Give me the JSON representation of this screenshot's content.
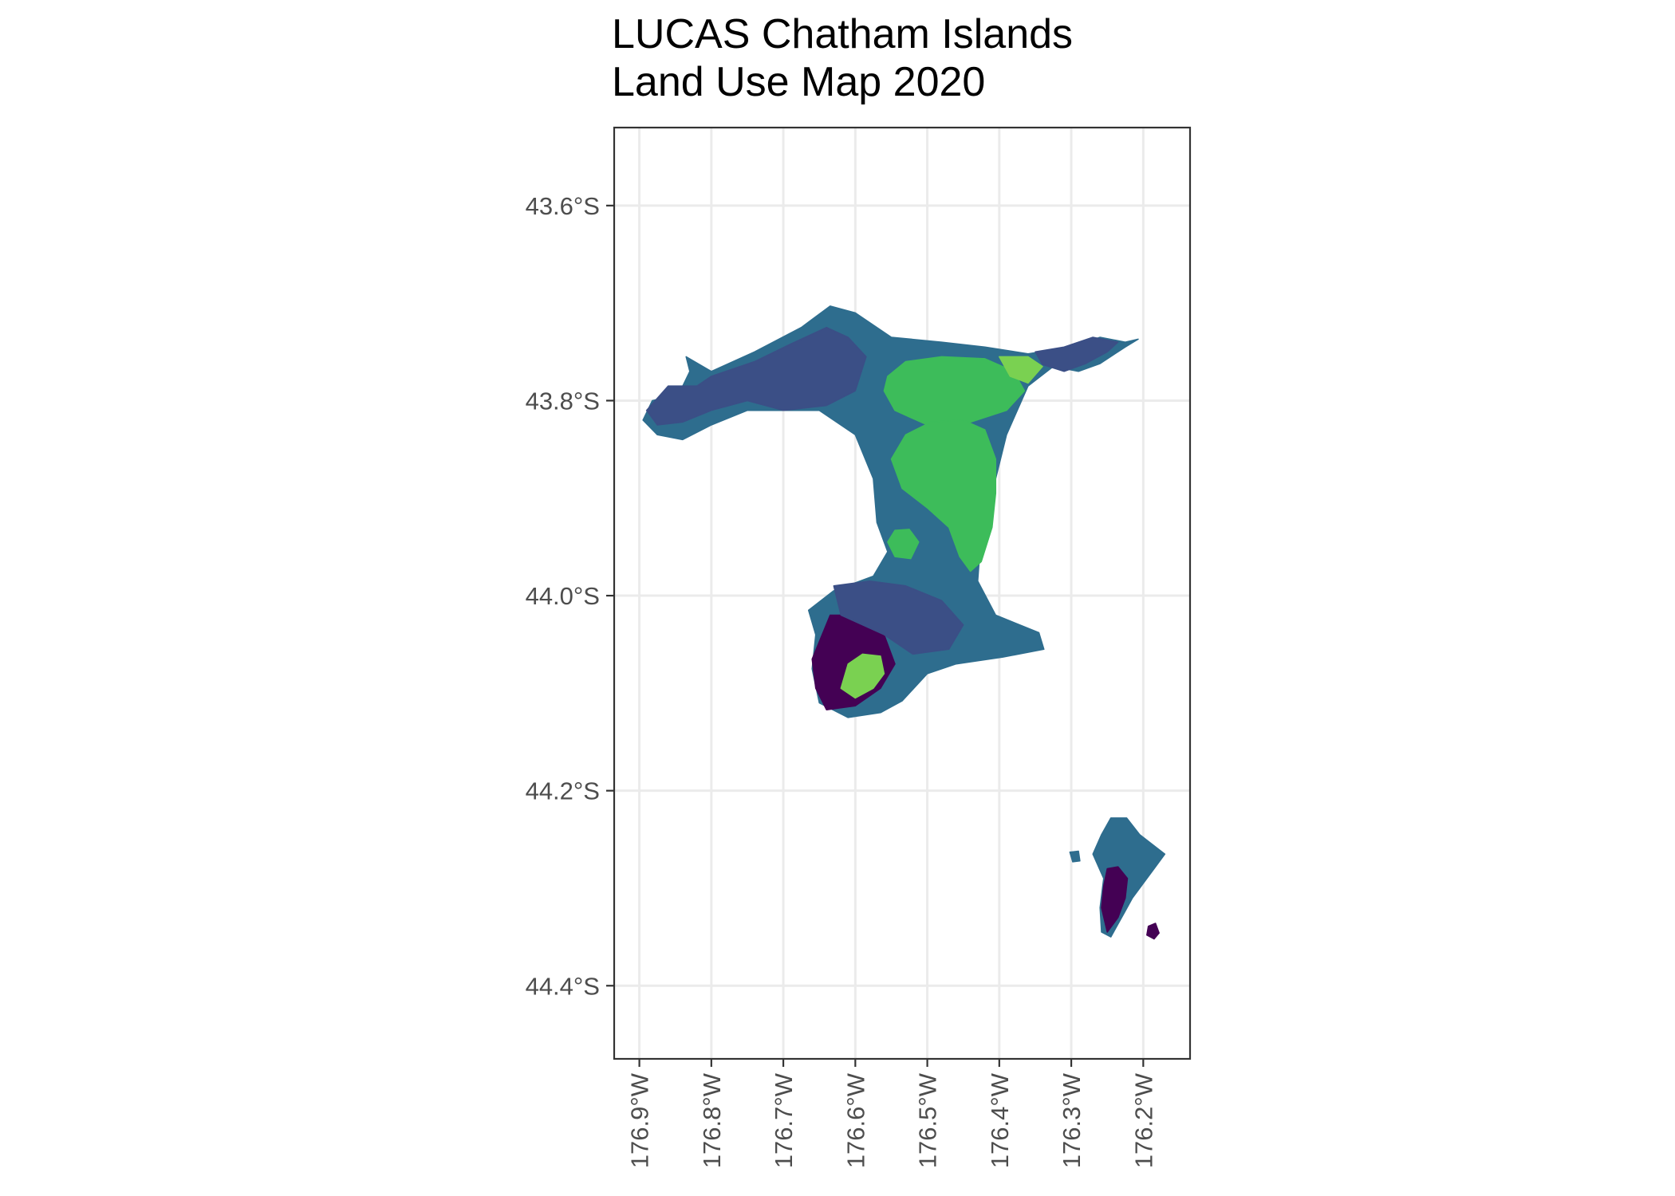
{
  "chart_data": {
    "type": "map",
    "title_lines": [
      "LUCAS Chatham Islands",
      "Land Use Map 2020"
    ],
    "subtitle": "",
    "xlabel": "",
    "ylabel": "",
    "grid": true,
    "legend": "none",
    "crs_extent": {
      "lon_min": -176.935,
      "lon_max": -176.135,
      "lat_min": -44.475,
      "lat_max": -43.52
    },
    "y_ticks": [
      {
        "value": -43.6,
        "label": "43.6°S"
      },
      {
        "value": -43.8,
        "label": "43.8°S"
      },
      {
        "value": -44.0,
        "label": "44.0°S"
      },
      {
        "value": -44.2,
        "label": "44.2°S"
      },
      {
        "value": -44.4,
        "label": "44.4°S"
      }
    ],
    "x_ticks": [
      {
        "value": -176.9,
        "label": "176.9°W"
      },
      {
        "value": -176.8,
        "label": "176.8°W"
      },
      {
        "value": -176.7,
        "label": "176.7°W"
      },
      {
        "value": -176.6,
        "label": "176.6°W"
      },
      {
        "value": -176.5,
        "label": "176.5°W"
      },
      {
        "value": -176.4,
        "label": "176.4°W"
      },
      {
        "value": -176.3,
        "label": "176.3°W"
      },
      {
        "value": -176.2,
        "label": "176.2°W"
      }
    ],
    "land_use_palette": {
      "dark_purple": "#440154",
      "dark_blue": "#3b4f86",
      "teal": "#2e6d8e",
      "light_teal": "#21918c",
      "green": "#3dbc5a",
      "light_green": "#7ad151",
      "yellow": "#fde725"
    },
    "regions": [
      {
        "name": "chatham-main-island",
        "class": "teal",
        "coords": [
          [
            -176.835,
            -43.755
          ],
          [
            -176.8,
            -43.77
          ],
          [
            -176.74,
            -43.75
          ],
          [
            -176.675,
            -43.725
          ],
          [
            -176.635,
            -43.703
          ],
          [
            -176.6,
            -43.71
          ],
          [
            -176.55,
            -43.735
          ],
          [
            -176.48,
            -43.74
          ],
          [
            -176.42,
            -43.745
          ],
          [
            -176.36,
            -43.752
          ],
          [
            -176.3,
            -43.745
          ],
          [
            -176.26,
            -43.735
          ],
          [
            -176.225,
            -43.74
          ],
          [
            -176.207,
            -43.737
          ],
          [
            -176.225,
            -43.745
          ],
          [
            -176.26,
            -43.762
          ],
          [
            -176.29,
            -43.77
          ],
          [
            -176.325,
            -43.765
          ],
          [
            -176.36,
            -43.785
          ],
          [
            -176.39,
            -43.835
          ],
          [
            -176.41,
            -43.895
          ],
          [
            -176.425,
            -43.935
          ],
          [
            -176.43,
            -43.985
          ],
          [
            -176.405,
            -44.02
          ],
          [
            -176.345,
            -44.038
          ],
          [
            -176.338,
            -44.055
          ],
          [
            -176.395,
            -44.063
          ],
          [
            -176.46,
            -44.07
          ],
          [
            -176.5,
            -44.08
          ],
          [
            -176.535,
            -44.108
          ],
          [
            -176.565,
            -44.12
          ],
          [
            -176.61,
            -44.125
          ],
          [
            -176.65,
            -44.11
          ],
          [
            -176.66,
            -44.075
          ],
          [
            -176.655,
            -44.04
          ],
          [
            -176.665,
            -44.015
          ],
          [
            -176.63,
            -43.995
          ],
          [
            -176.575,
            -43.98
          ],
          [
            -176.555,
            -43.955
          ],
          [
            -176.57,
            -43.925
          ],
          [
            -176.575,
            -43.88
          ],
          [
            -176.6,
            -43.835
          ],
          [
            -176.65,
            -43.81
          ],
          [
            -176.7,
            -43.81
          ],
          [
            -176.75,
            -43.81
          ],
          [
            -176.8,
            -43.825
          ],
          [
            -176.84,
            -43.84
          ],
          [
            -176.875,
            -43.835
          ],
          [
            -176.895,
            -43.82
          ],
          [
            -176.882,
            -43.8
          ],
          [
            -176.845,
            -43.793
          ],
          [
            -176.83,
            -43.77
          ]
        ]
      },
      {
        "name": "northwest-peninsula-bush",
        "class": "dark_blue",
        "coords": [
          [
            -176.89,
            -43.81
          ],
          [
            -176.86,
            -43.785
          ],
          [
            -176.82,
            -43.785
          ],
          [
            -176.8,
            -43.775
          ],
          [
            -176.74,
            -43.76
          ],
          [
            -176.69,
            -43.742
          ],
          [
            -176.64,
            -43.725
          ],
          [
            -176.61,
            -43.735
          ],
          [
            -176.585,
            -43.755
          ],
          [
            -176.6,
            -43.79
          ],
          [
            -176.64,
            -43.805
          ],
          [
            -176.7,
            -43.81
          ],
          [
            -176.75,
            -43.8
          ],
          [
            -176.8,
            -43.81
          ],
          [
            -176.84,
            -43.822
          ],
          [
            -176.875,
            -43.825
          ]
        ]
      },
      {
        "name": "te-whanga-lagoon-north",
        "class": "green",
        "coords": [
          [
            -176.555,
            -43.775
          ],
          [
            -176.53,
            -43.76
          ],
          [
            -176.48,
            -43.755
          ],
          [
            -176.42,
            -43.757
          ],
          [
            -176.38,
            -43.77
          ],
          [
            -176.365,
            -43.79
          ],
          [
            -176.39,
            -43.81
          ],
          [
            -176.44,
            -43.822
          ],
          [
            -176.5,
            -43.825
          ],
          [
            -176.545,
            -43.81
          ],
          [
            -176.56,
            -43.79
          ]
        ]
      },
      {
        "name": "te-whanga-lagoon-south",
        "class": "green",
        "coords": [
          [
            -176.53,
            -43.835
          ],
          [
            -176.495,
            -43.822
          ],
          [
            -176.45,
            -43.82
          ],
          [
            -176.42,
            -43.83
          ],
          [
            -176.405,
            -43.86
          ],
          [
            -176.405,
            -43.895
          ],
          [
            -176.41,
            -43.93
          ],
          [
            -176.425,
            -43.965
          ],
          [
            -176.44,
            -43.975
          ],
          [
            -176.455,
            -43.96
          ],
          [
            -176.47,
            -43.93
          ],
          [
            -176.5,
            -43.91
          ],
          [
            -176.535,
            -43.89
          ],
          [
            -176.55,
            -43.86
          ]
        ]
      },
      {
        "name": "huro-lagoon",
        "class": "green",
        "coords": [
          [
            -176.545,
            -43.933
          ],
          [
            -176.525,
            -43.932
          ],
          [
            -176.512,
            -43.945
          ],
          [
            -176.523,
            -43.962
          ],
          [
            -176.545,
            -43.96
          ],
          [
            -176.555,
            -43.945
          ]
        ]
      },
      {
        "name": "northeast-cape-bush",
        "class": "dark_blue",
        "coords": [
          [
            -176.35,
            -43.75
          ],
          [
            -176.31,
            -43.745
          ],
          [
            -176.27,
            -43.735
          ],
          [
            -176.235,
            -43.74
          ],
          [
            -176.25,
            -43.75
          ],
          [
            -176.28,
            -43.762
          ],
          [
            -176.31,
            -43.77
          ],
          [
            -176.34,
            -43.763
          ]
        ]
      },
      {
        "name": "northeast-lagoon-margin",
        "class": "light_green",
        "coords": [
          [
            -176.4,
            -43.755
          ],
          [
            -176.36,
            -43.755
          ],
          [
            -176.34,
            -43.765
          ],
          [
            -176.36,
            -43.782
          ],
          [
            -176.385,
            -43.775
          ]
        ]
      },
      {
        "name": "southern-tablelands-bush",
        "class": "dark_purple",
        "coords": [
          [
            -176.66,
            -44.065
          ],
          [
            -176.635,
            -44.02
          ],
          [
            -176.59,
            -44.02
          ],
          [
            -176.56,
            -44.04
          ],
          [
            -176.545,
            -44.07
          ],
          [
            -176.565,
            -44.095
          ],
          [
            -176.6,
            -44.113
          ],
          [
            -176.64,
            -44.117
          ],
          [
            -176.655,
            -44.095
          ]
        ]
      },
      {
        "name": "southern-tablelands-pasture",
        "class": "light_green",
        "coords": [
          [
            -176.61,
            -44.07
          ],
          [
            -176.59,
            -44.06
          ],
          [
            -176.565,
            -44.062
          ],
          [
            -176.56,
            -44.08
          ],
          [
            -176.575,
            -44.095
          ],
          [
            -176.6,
            -44.105
          ],
          [
            -176.62,
            -44.095
          ]
        ]
      },
      {
        "name": "southern-hinterland-scrub",
        "class": "dark_blue",
        "coords": [
          [
            -176.63,
            -43.99
          ],
          [
            -176.58,
            -43.985
          ],
          [
            -176.53,
            -43.99
          ],
          [
            -176.48,
            -44.005
          ],
          [
            -176.45,
            -44.03
          ],
          [
            -176.47,
            -44.055
          ],
          [
            -176.52,
            -44.06
          ],
          [
            -176.56,
            -44.04
          ],
          [
            -176.62,
            -44.02
          ]
        ]
      },
      {
        "name": "pitt-island",
        "class": "teal",
        "coords": [
          [
            -176.245,
            -44.228
          ],
          [
            -176.223,
            -44.228
          ],
          [
            -176.205,
            -44.245
          ],
          [
            -176.17,
            -44.265
          ],
          [
            -176.185,
            -44.28
          ],
          [
            -176.2,
            -44.295
          ],
          [
            -176.215,
            -44.31
          ],
          [
            -176.23,
            -44.33
          ],
          [
            -176.245,
            -44.35
          ],
          [
            -176.258,
            -44.345
          ],
          [
            -176.26,
            -44.32
          ],
          [
            -176.255,
            -44.29
          ],
          [
            -176.27,
            -44.265
          ],
          [
            -176.258,
            -44.245
          ]
        ]
      },
      {
        "name": "pitt-island-bush",
        "class": "dark_purple",
        "coords": [
          [
            -176.25,
            -44.28
          ],
          [
            -176.235,
            -44.278
          ],
          [
            -176.222,
            -44.29
          ],
          [
            -176.225,
            -44.31
          ],
          [
            -176.235,
            -44.33
          ],
          [
            -176.25,
            -44.345
          ],
          [
            -176.258,
            -44.32
          ],
          [
            -176.255,
            -44.298
          ]
        ]
      },
      {
        "name": "south-east-island",
        "class": "dark_purple",
        "coords": [
          [
            -176.193,
            -44.339
          ],
          [
            -176.183,
            -44.336
          ],
          [
            -176.178,
            -44.346
          ],
          [
            -176.185,
            -44.352
          ],
          [
            -176.195,
            -44.348
          ]
        ]
      },
      {
        "name": "mangere-island",
        "class": "teal",
        "coords": [
          [
            -176.302,
            -44.263
          ],
          [
            -176.29,
            -44.262
          ],
          [
            -176.288,
            -44.272
          ],
          [
            -176.298,
            -44.273
          ]
        ]
      }
    ]
  }
}
